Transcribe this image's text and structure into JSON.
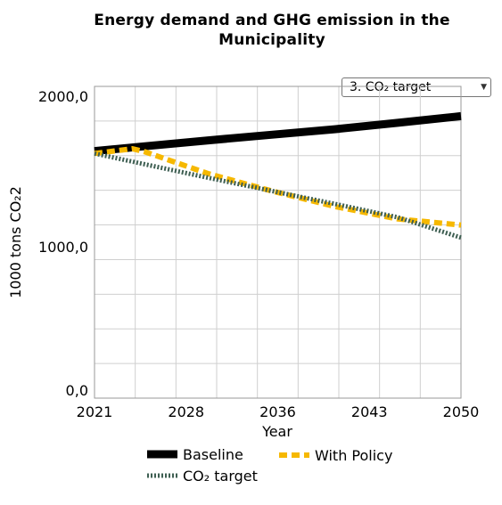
{
  "title_line1": "Energy demand and GHG emission in the",
  "title_line2": "Municipality",
  "selector": {
    "value": "3. CO₂ target"
  },
  "chart_data": {
    "type": "line",
    "xlabel": "Year",
    "ylabel": "1000 tons CO₂2",
    "xlim": [
      2021,
      2050
    ],
    "ylim": [
      0,
      2000
    ],
    "x_ticks": [
      "2021",
      "2028",
      "2036",
      "2043",
      "2050"
    ],
    "y_ticks": [
      "0,0",
      "1000,0",
      "2000,0"
    ],
    "grid": true,
    "legend_position": "bottom",
    "series": [
      {
        "name": "Baseline",
        "color": "#000000",
        "style": "solid",
        "x": [
          2021,
          2025,
          2030,
          2035,
          2040,
          2045,
          2050
        ],
        "y": [
          1585,
          1616,
          1654,
          1690,
          1725,
          1766,
          1809
        ]
      },
      {
        "name": "With Policy",
        "color": "#f6b800",
        "style": "dashed",
        "x": [
          2021,
          2024,
          2025,
          2030,
          2035,
          2040,
          2045,
          2050
        ],
        "y": [
          1570,
          1600,
          1580,
          1440,
          1330,
          1230,
          1150,
          1110
        ]
      },
      {
        "name": "CO₂ target",
        "color": "#3e5f52",
        "style": "dotted",
        "x": [
          2021,
          2025,
          2030,
          2035,
          2040,
          2045,
          2050
        ],
        "y": [
          1570,
          1500,
          1414,
          1330,
          1246,
          1160,
          1030
        ]
      }
    ]
  }
}
